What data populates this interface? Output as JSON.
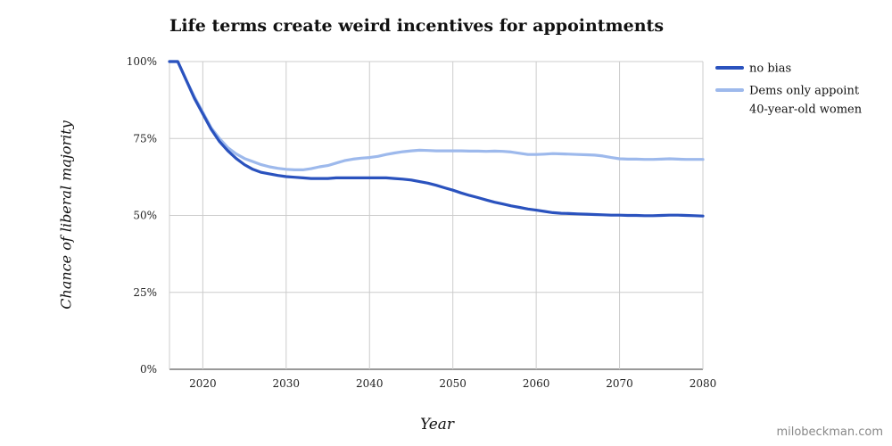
{
  "chart_data": {
    "type": "line",
    "title": "Life terms create weird incentives for appointments",
    "xlabel": "Year",
    "ylabel": "Chance of liberal majority",
    "xlim": [
      2016,
      2080
    ],
    "ylim": [
      0,
      100
    ],
    "x_ticks": [
      2020,
      2030,
      2040,
      2050,
      2060,
      2070,
      2080
    ],
    "y_ticks": [
      0,
      25,
      50,
      75,
      100
    ],
    "y_tick_labels": [
      "0%",
      "25%",
      "50%",
      "75%",
      "100%"
    ],
    "grid": true,
    "legend_position": "right",
    "series": [
      {
        "name": "no bias",
        "color": "#2a52be",
        "points": [
          [
            2016,
            100
          ],
          [
            2017,
            100
          ],
          [
            2018,
            94
          ],
          [
            2019,
            88
          ],
          [
            2020,
            83
          ],
          [
            2021,
            78
          ],
          [
            2022,
            74
          ],
          [
            2023,
            71
          ],
          [
            2024,
            68.5
          ],
          [
            2025,
            66.5
          ],
          [
            2026,
            65
          ],
          [
            2027,
            64
          ],
          [
            2028,
            63.5
          ],
          [
            2029,
            63
          ],
          [
            2030,
            62.6
          ],
          [
            2031,
            62.4
          ],
          [
            2032,
            62.2
          ],
          [
            2033,
            62
          ],
          [
            2034,
            62
          ],
          [
            2035,
            62
          ],
          [
            2036,
            62.2
          ],
          [
            2037,
            62.2
          ],
          [
            2038,
            62.2
          ],
          [
            2039,
            62.2
          ],
          [
            2040,
            62.2
          ],
          [
            2041,
            62.2
          ],
          [
            2042,
            62.2
          ],
          [
            2043,
            62
          ],
          [
            2044,
            61.8
          ],
          [
            2045,
            61.5
          ],
          [
            2046,
            61
          ],
          [
            2047,
            60.5
          ],
          [
            2048,
            59.8
          ],
          [
            2049,
            59
          ],
          [
            2050,
            58.2
          ],
          [
            2051,
            57.3
          ],
          [
            2052,
            56.5
          ],
          [
            2053,
            55.8
          ],
          [
            2054,
            55
          ],
          [
            2055,
            54.3
          ],
          [
            2056,
            53.7
          ],
          [
            2057,
            53.1
          ],
          [
            2058,
            52.6
          ],
          [
            2059,
            52.1
          ],
          [
            2060,
            51.7
          ],
          [
            2061,
            51.3
          ],
          [
            2062,
            50.9
          ],
          [
            2063,
            50.7
          ],
          [
            2064,
            50.6
          ],
          [
            2065,
            50.5
          ],
          [
            2066,
            50.4
          ],
          [
            2067,
            50.3
          ],
          [
            2068,
            50.2
          ],
          [
            2069,
            50.1
          ],
          [
            2070,
            50.1
          ],
          [
            2071,
            50
          ],
          [
            2072,
            50
          ],
          [
            2073,
            49.9
          ],
          [
            2074,
            49.9
          ],
          [
            2075,
            50
          ],
          [
            2076,
            50.1
          ],
          [
            2077,
            50.1
          ],
          [
            2078,
            50
          ],
          [
            2079,
            49.9
          ],
          [
            2080,
            49.8
          ]
        ]
      },
      {
        "name": "Dems only appoint 40-year-old women",
        "color": "#9db9ec",
        "points": [
          [
            2016,
            100
          ],
          [
            2017,
            100
          ],
          [
            2018,
            94
          ],
          [
            2019,
            88.5
          ],
          [
            2020,
            83.5
          ],
          [
            2021,
            78.5
          ],
          [
            2022,
            75
          ],
          [
            2023,
            72
          ],
          [
            2024,
            70
          ],
          [
            2025,
            68.5
          ],
          [
            2026,
            67.5
          ],
          [
            2027,
            66.5
          ],
          [
            2028,
            65.8
          ],
          [
            2029,
            65.3
          ],
          [
            2030,
            65
          ],
          [
            2031,
            64.8
          ],
          [
            2032,
            64.8
          ],
          [
            2033,
            65.2
          ],
          [
            2034,
            65.8
          ],
          [
            2035,
            66.2
          ],
          [
            2036,
            67
          ],
          [
            2037,
            67.8
          ],
          [
            2038,
            68.3
          ],
          [
            2039,
            68.6
          ],
          [
            2040,
            68.8
          ],
          [
            2041,
            69.2
          ],
          [
            2042,
            69.8
          ],
          [
            2043,
            70.3
          ],
          [
            2044,
            70.7
          ],
          [
            2045,
            71
          ],
          [
            2046,
            71.2
          ],
          [
            2047,
            71.1
          ],
          [
            2048,
            71
          ],
          [
            2049,
            71
          ],
          [
            2050,
            71
          ],
          [
            2051,
            71
          ],
          [
            2052,
            70.9
          ],
          [
            2053,
            70.9
          ],
          [
            2054,
            70.8
          ],
          [
            2055,
            70.9
          ],
          [
            2056,
            70.8
          ],
          [
            2057,
            70.6
          ],
          [
            2058,
            70.2
          ],
          [
            2059,
            69.8
          ],
          [
            2060,
            69.8
          ],
          [
            2061,
            69.9
          ],
          [
            2062,
            70.1
          ],
          [
            2063,
            70
          ],
          [
            2064,
            69.9
          ],
          [
            2065,
            69.8
          ],
          [
            2066,
            69.7
          ],
          [
            2067,
            69.6
          ],
          [
            2068,
            69.3
          ],
          [
            2069,
            68.8
          ],
          [
            2070,
            68.4
          ],
          [
            2071,
            68.3
          ],
          [
            2072,
            68.3
          ],
          [
            2073,
            68.2
          ],
          [
            2074,
            68.2
          ],
          [
            2075,
            68.3
          ],
          [
            2076,
            68.4
          ],
          [
            2077,
            68.3
          ],
          [
            2078,
            68.2
          ],
          [
            2079,
            68.2
          ],
          [
            2080,
            68.2
          ]
        ]
      }
    ],
    "legend": [
      {
        "line1": "no bias",
        "line2": ""
      },
      {
        "line1": "Dems only appoint",
        "line2": "40-year-old women"
      }
    ]
  },
  "watermark": "milobeckman.com"
}
